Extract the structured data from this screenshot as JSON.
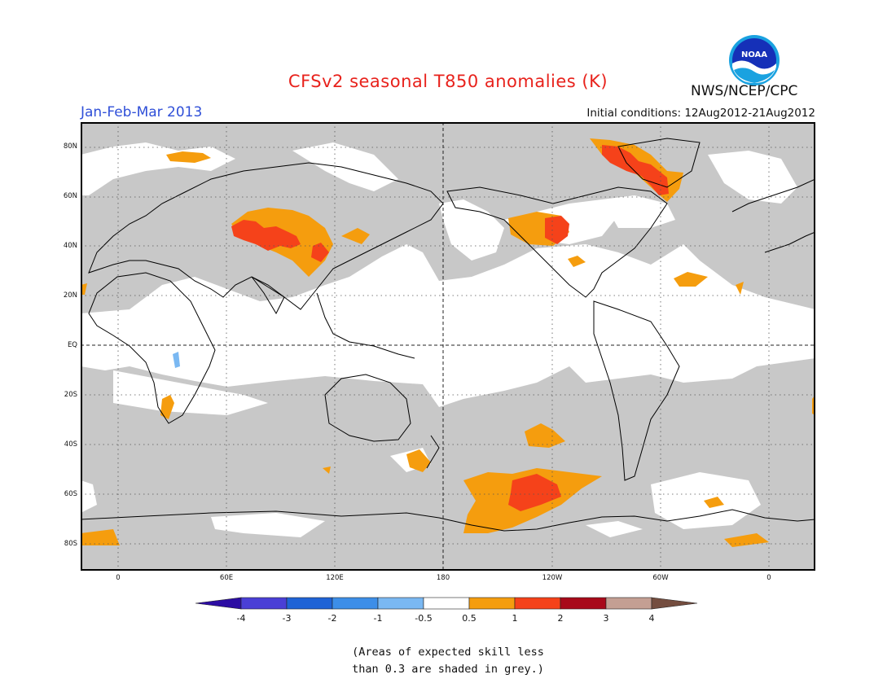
{
  "header": {
    "title": "CFSv2 seasonal T850 anomalies (K)",
    "agency": "NWS/NCEP/CPC",
    "period": "Jan-Feb-Mar 2013",
    "initial_conditions": "Initial conditions: 12Aug2012-21Aug2012",
    "logo_text": "NOAA"
  },
  "map": {
    "lat_labels": [
      "80N",
      "60N",
      "40N",
      "20N",
      "EQ",
      "20S",
      "40S",
      "60S",
      "80S"
    ],
    "lon_labels": [
      "0",
      "60E",
      "120E",
      "180",
      "120W",
      "60W",
      "0"
    ],
    "ocean_fill": "#c8c8c8",
    "skill_fill": "#ffffff"
  },
  "colorbar": {
    "colors": [
      "#2c0da3",
      "#4a3fd6",
      "#1f63d6",
      "#3d8ee8",
      "#7ab8f2",
      "#ffffff",
      "#f59d0e",
      "#f5421a",
      "#a8091a",
      "#c49f93",
      "#744d3f"
    ],
    "labels": [
      "-4",
      "-3",
      "-2",
      "-1",
      "-0.5",
      "0.5",
      "1",
      "2",
      "3",
      "4"
    ]
  },
  "note": {
    "line1": "(Areas of expected skill less",
    "line2": "than 0.3 are shaded in grey.)"
  }
}
